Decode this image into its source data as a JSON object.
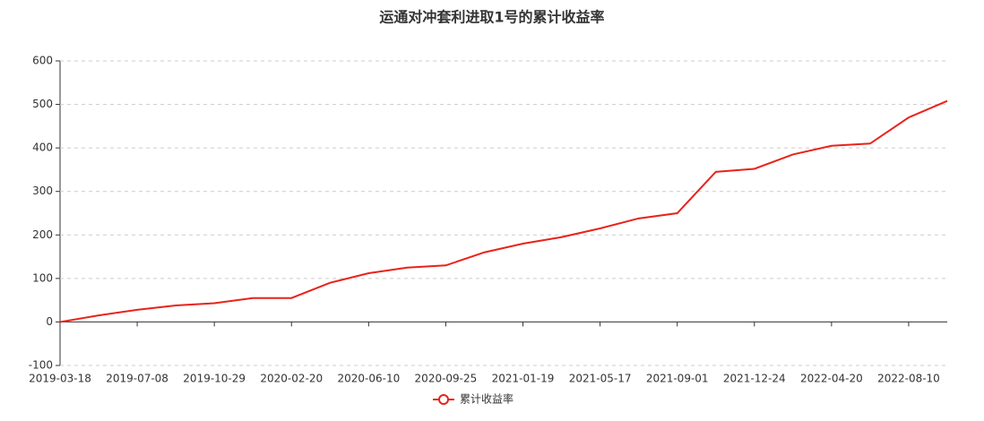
{
  "chart_data": {
    "type": "line",
    "title": "运通对冲套利进取1号的累计收益率",
    "categories": [
      "2019-03-18",
      null,
      "2019-07-08",
      null,
      "2019-10-29",
      null,
      "2020-02-20",
      null,
      "2020-06-10",
      null,
      "2020-09-25",
      null,
      "2021-01-19",
      null,
      "2021-05-17",
      null,
      "2021-09-01",
      null,
      "2021-12-24",
      null,
      "2022-04-20",
      null,
      "2022-08-10",
      null
    ],
    "series": [
      {
        "name": "累计收益率",
        "color": "#e8231a",
        "values": [
          0,
          15,
          28,
          38,
          43,
          55,
          55,
          90,
          112,
          125,
          130,
          160,
          180,
          195,
          215,
          238,
          250,
          345,
          352,
          385,
          405,
          410,
          470,
          508
        ]
      }
    ],
    "ylim": [
      -100,
      600
    ],
    "yticks": [
      -100,
      0,
      100,
      200,
      300,
      400,
      500,
      600
    ],
    "grid": true
  }
}
